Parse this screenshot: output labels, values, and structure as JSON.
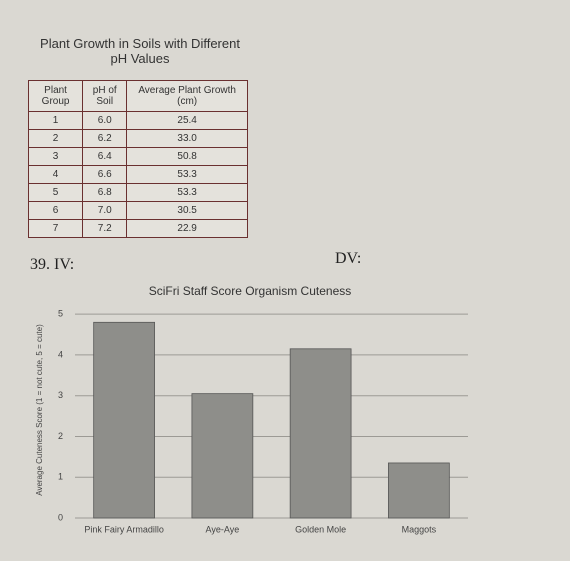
{
  "table": {
    "title": "Plant Growth in Soils with Different pH Values",
    "headers": [
      "Plant Group",
      "pH of Soil",
      "Average Plant Growth (cm)"
    ],
    "rows": [
      [
        "1",
        "6.0",
        "25.4"
      ],
      [
        "2",
        "6.2",
        "33.0"
      ],
      [
        "3",
        "6.4",
        "50.8"
      ],
      [
        "4",
        "6.6",
        "53.3"
      ],
      [
        "5",
        "6.8",
        "53.3"
      ],
      [
        "6",
        "7.0",
        "30.5"
      ],
      [
        "7",
        "7.2",
        "22.9"
      ]
    ]
  },
  "labels": {
    "question": "39. IV:",
    "dv": "DV:"
  },
  "chart_data": {
    "type": "bar",
    "title": "SciFri Staff Score Organism Cuteness",
    "y_label": "Average Cuteness Score (1 = not cute, 5 = cute)",
    "categories": [
      "Pink Fairy Armadillo",
      "Aye-Aye",
      "Golden Mole",
      "Maggots"
    ],
    "values": [
      4.8,
      3.05,
      4.15,
      1.35
    ],
    "color": "#8e8e8a",
    "ylim": [
      0,
      5.2
    ],
    "yticks": [
      0,
      1,
      2,
      3,
      4,
      5
    ],
    "grid": true
  }
}
